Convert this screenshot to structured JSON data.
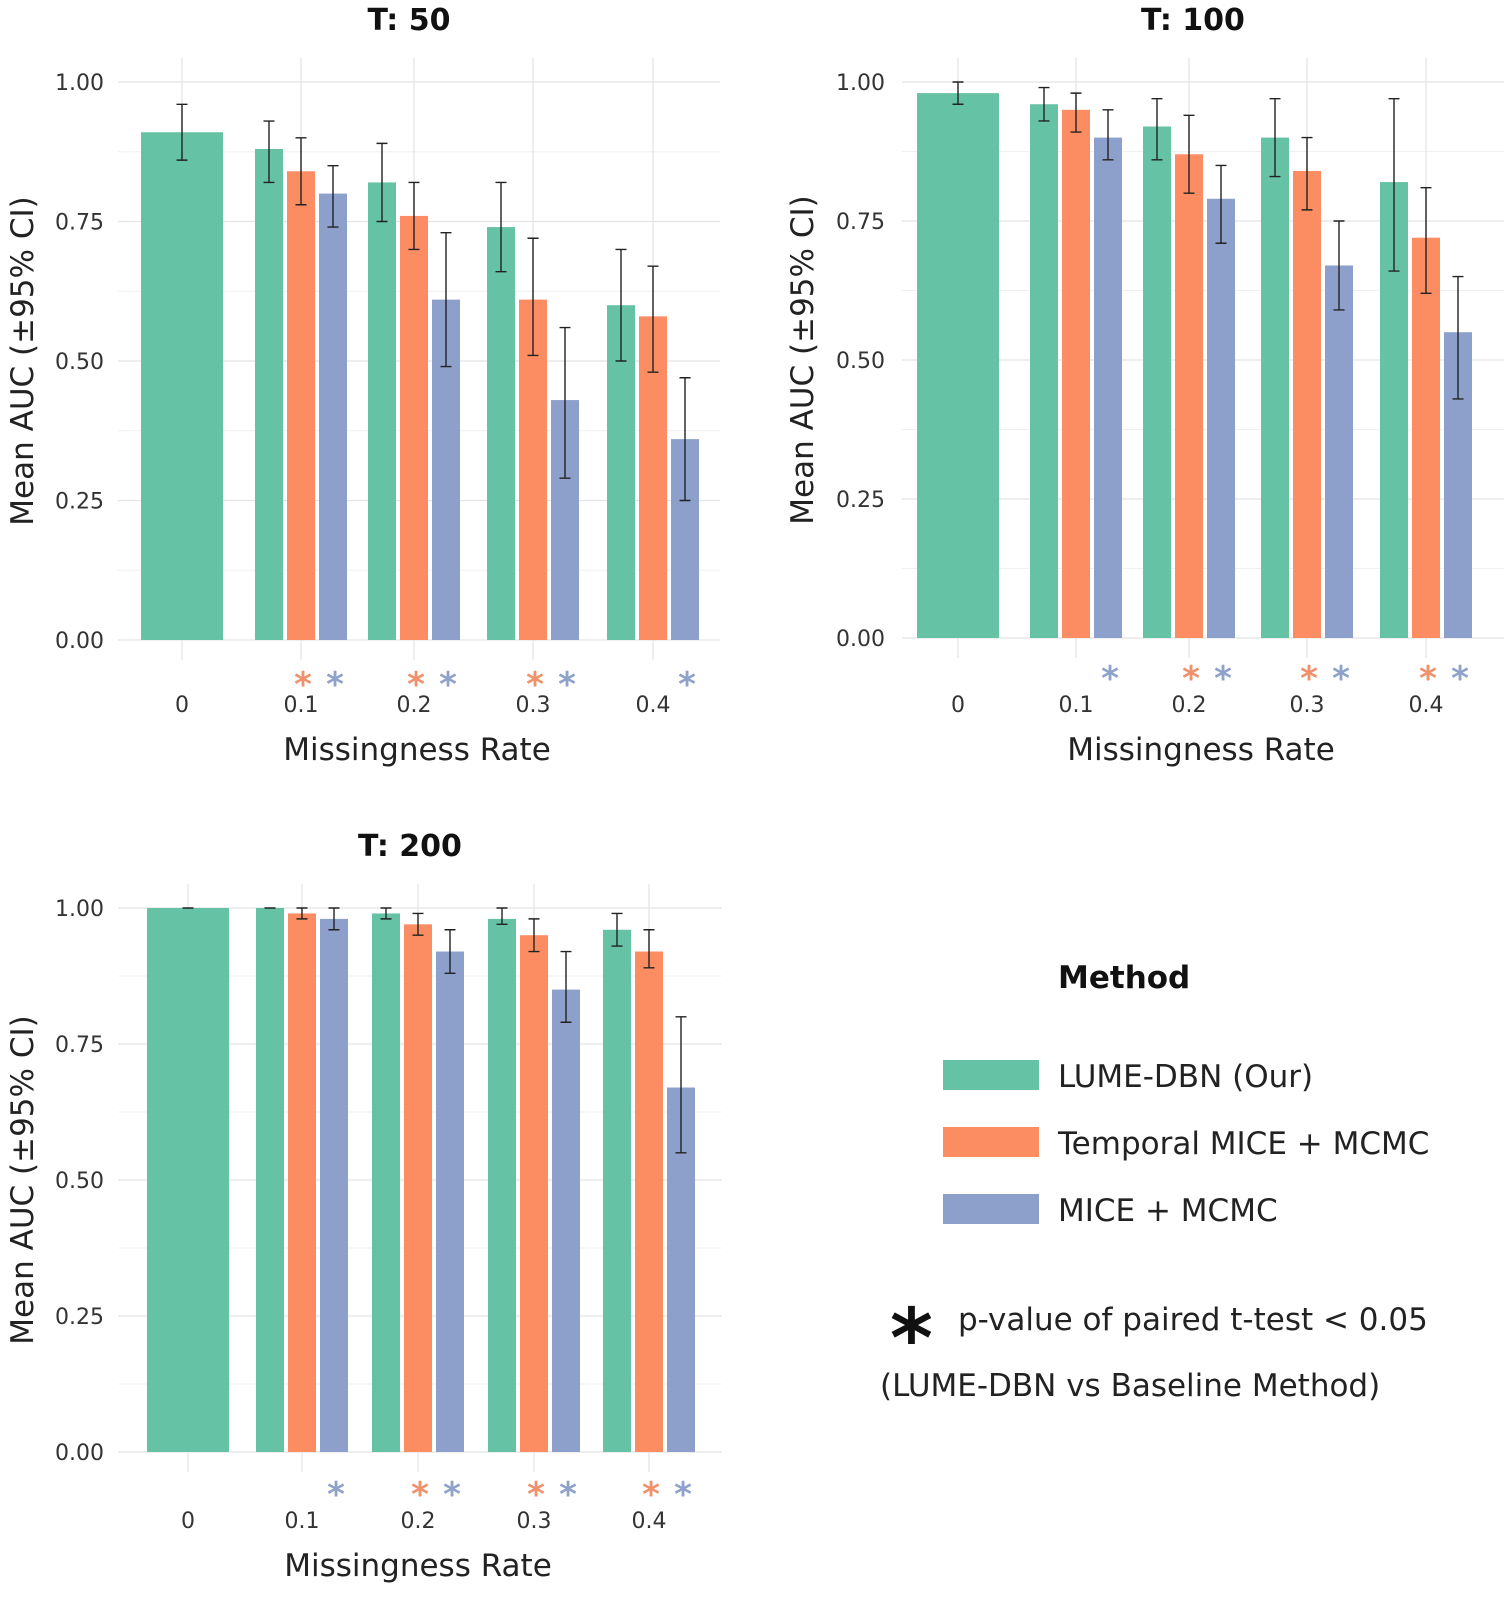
{
  "legend": {
    "title": "Method",
    "items": [
      {
        "label": "LUME-DBN (Our)",
        "color": "#66c2a5"
      },
      {
        "label": "Temporal MICE + MCMC",
        "color": "#fc8d62"
      },
      {
        "label": "MICE + MCMC",
        "color": "#8da0cb"
      }
    ]
  },
  "note": {
    "symbol": "*",
    "line1": "p-value of paired t-test < 0.05",
    "line2": "(LUME-DBN vs Baseline Method)"
  },
  "chart_data": [
    {
      "type": "bar",
      "title": "T: 50",
      "xlabel": "Missingness Rate",
      "ylabel": "Mean AUC (±95% CI)",
      "ylim": [
        0,
        1
      ],
      "yticks": [
        "0.00",
        "0.25",
        "0.50",
        "0.75",
        "1.00"
      ],
      "categories": [
        "0",
        "0.1",
        "0.2",
        "0.3",
        "0.4"
      ],
      "series": [
        {
          "name": "LUME-DBN (Our)",
          "values": [
            0.91,
            0.88,
            0.82,
            0.74,
            0.6
          ],
          "ci_low": [
            0.86,
            0.82,
            0.75,
            0.66,
            0.5
          ],
          "ci_high": [
            0.96,
            0.93,
            0.89,
            0.82,
            0.7
          ]
        },
        {
          "name": "Temporal MICE + MCMC",
          "values": [
            null,
            0.84,
            0.76,
            0.61,
            0.58
          ],
          "ci_low": [
            null,
            0.78,
            0.7,
            0.51,
            0.48
          ],
          "ci_high": [
            null,
            0.9,
            0.82,
            0.72,
            0.67
          ]
        },
        {
          "name": "MICE + MCMC",
          "values": [
            null,
            0.8,
            0.61,
            0.43,
            0.36
          ],
          "ci_low": [
            null,
            0.74,
            0.49,
            0.29,
            0.25
          ],
          "ci_high": [
            null,
            0.85,
            0.73,
            0.56,
            0.47
          ]
        }
      ],
      "significance": {
        "Temporal MICE + MCMC": [
          false,
          true,
          true,
          true,
          false
        ],
        "MICE + MCMC": [
          false,
          true,
          true,
          true,
          true
        ]
      }
    },
    {
      "type": "bar",
      "title": "T: 100",
      "xlabel": "Missingness Rate",
      "ylabel": "Mean AUC (±95% CI)",
      "ylim": [
        0,
        1
      ],
      "yticks": [
        "0.00",
        "0.25",
        "0.50",
        "0.75",
        "1.00"
      ],
      "categories": [
        "0",
        "0.1",
        "0.2",
        "0.3",
        "0.4"
      ],
      "series": [
        {
          "name": "LUME-DBN (Our)",
          "values": [
            0.98,
            0.96,
            0.92,
            0.9,
            0.82
          ],
          "ci_low": [
            0.96,
            0.93,
            0.86,
            0.83,
            0.66
          ],
          "ci_high": [
            1.0,
            0.99,
            0.97,
            0.97,
            0.97
          ]
        },
        {
          "name": "Temporal MICE + MCMC",
          "values": [
            null,
            0.95,
            0.87,
            0.84,
            0.72
          ],
          "ci_low": [
            null,
            0.91,
            0.8,
            0.77,
            0.62
          ],
          "ci_high": [
            null,
            0.98,
            0.94,
            0.9,
            0.81
          ]
        },
        {
          "name": "MICE + MCMC",
          "values": [
            null,
            0.9,
            0.79,
            0.67,
            0.55
          ],
          "ci_low": [
            null,
            0.86,
            0.71,
            0.59,
            0.43
          ],
          "ci_high": [
            null,
            0.95,
            0.85,
            0.75,
            0.65
          ]
        }
      ],
      "significance": {
        "Temporal MICE + MCMC": [
          false,
          false,
          true,
          true,
          true
        ],
        "MICE + MCMC": [
          false,
          true,
          true,
          true,
          true
        ]
      }
    },
    {
      "type": "bar",
      "title": "T: 200",
      "xlabel": "Missingness Rate",
      "ylabel": "Mean AUC (±95% CI)",
      "ylim": [
        0,
        1
      ],
      "yticks": [
        "0.00",
        "0.25",
        "0.50",
        "0.75",
        "1.00"
      ],
      "categories": [
        "0",
        "0.1",
        "0.2",
        "0.3",
        "0.4"
      ],
      "series": [
        {
          "name": "LUME-DBN (Our)",
          "values": [
            1.0,
            1.0,
            0.99,
            0.98,
            0.96
          ],
          "ci_low": [
            1.0,
            1.0,
            0.98,
            0.97,
            0.93
          ],
          "ci_high": [
            1.0,
            1.0,
            1.0,
            1.0,
            0.99
          ]
        },
        {
          "name": "Temporal MICE + MCMC",
          "values": [
            null,
            0.99,
            0.97,
            0.95,
            0.92
          ],
          "ci_low": [
            null,
            0.98,
            0.95,
            0.92,
            0.89
          ],
          "ci_high": [
            null,
            1.0,
            0.99,
            0.98,
            0.96
          ]
        },
        {
          "name": "MICE + MCMC",
          "values": [
            null,
            0.98,
            0.92,
            0.85,
            0.67
          ],
          "ci_low": [
            null,
            0.96,
            0.88,
            0.79,
            0.55
          ],
          "ci_high": [
            null,
            1.0,
            0.96,
            0.92,
            0.8
          ]
        }
      ],
      "significance": {
        "Temporal MICE + MCMC": [
          false,
          false,
          true,
          true,
          true
        ],
        "MICE + MCMC": [
          false,
          true,
          true,
          true,
          true
        ]
      }
    }
  ]
}
